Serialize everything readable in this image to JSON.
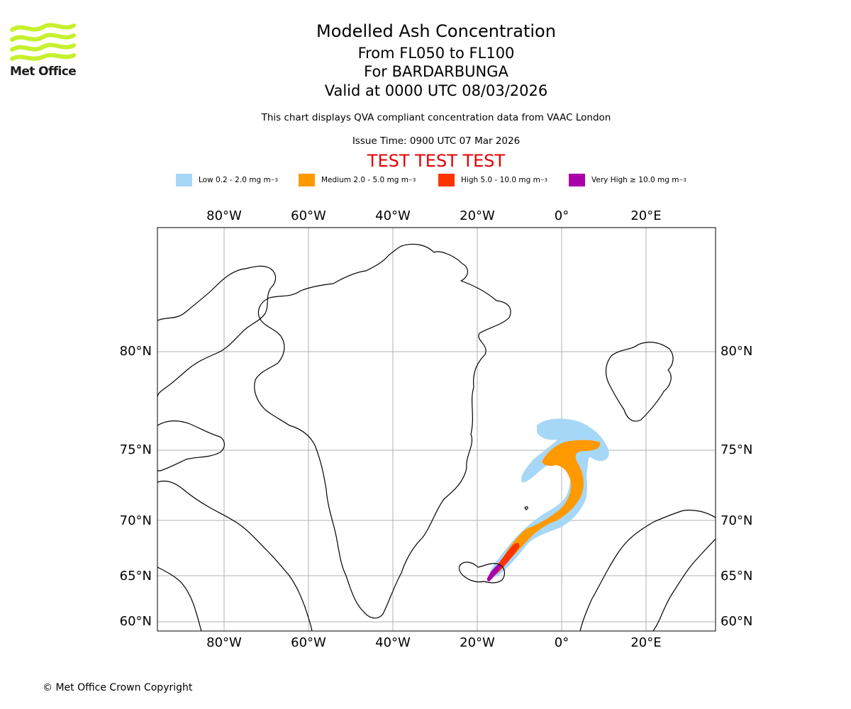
{
  "logo": {
    "text": "Met Office",
    "icon": "met-office-waves-icon",
    "color": "#c6f02e"
  },
  "title": {
    "line1": "Modelled Ash Concentration",
    "line2": "From FL050 to FL100",
    "line3": "For BARDARBUNGA",
    "line4": "Valid at 0000 UTC 08/03/2026"
  },
  "subtitle": "This chart displays QVA compliant concentration data from VAAC London",
  "issue_time": "Issue Time: 0900 UTC 07 Mar 2026",
  "test_banner": "TEST TEST TEST",
  "test_color": "#e60000",
  "legend": [
    {
      "label": "Low 0.2 - 2.0 mg m",
      "sup": "−3",
      "color": "#a6d7f7"
    },
    {
      "label": "Medium 2.0 - 5.0 mg m",
      "sup": "−3",
      "color": "#ff9900"
    },
    {
      "label": "High 5.0 - 10.0 mg m",
      "sup": "−3",
      "color": "#ff3300"
    },
    {
      "label": "Very High  ≥  10.0 mg m",
      "sup": "−3",
      "color": "#aa00aa"
    }
  ],
  "map": {
    "lon_labels": [
      "80°W",
      "60°W",
      "40°W",
      "20°W",
      "0°",
      "20°E"
    ],
    "lat_labels": [
      "80°N",
      "75°N",
      "70°N",
      "65°N",
      "60°N"
    ],
    "gridline_color": "#b0b0b0",
    "coastline_color": "#000000",
    "volcano": "BARDARBUNGA"
  },
  "copyright": "© Met Office Crown Copyright"
}
